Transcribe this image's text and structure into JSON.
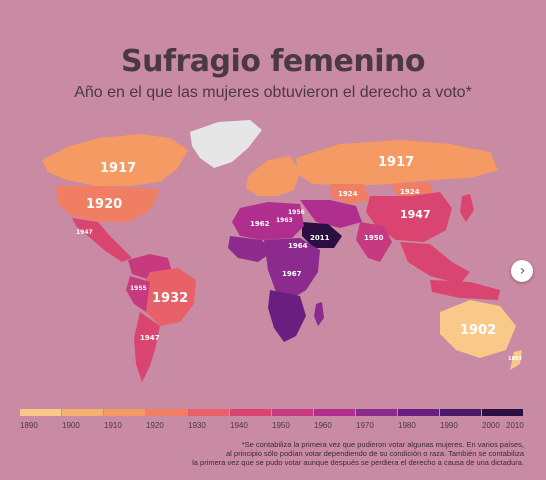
{
  "header": {
    "title": "Sufragio femenino",
    "subtitle": "Año en el que las mujeres obtuvieron el derecho a voto*"
  },
  "colors": {
    "background": "#c98aa3",
    "greenland": "#e6e6e6",
    "scale": [
      "#f9c98a",
      "#f8b070",
      "#f59a62",
      "#f07e62",
      "#e86068",
      "#d94570",
      "#c83a80",
      "#b02e8e",
      "#8c2a8e",
      "#6a1f80",
      "#4a1a68",
      "#2a0f40"
    ]
  },
  "map_labels": [
    {
      "id": "usa",
      "text": "1920",
      "color_index": 3
    },
    {
      "id": "canada",
      "text": "1917",
      "color_index": 2
    },
    {
      "id": "russia",
      "text": "1917",
      "color_index": 2
    },
    {
      "id": "brazil",
      "text": "1932",
      "color_index": 4
    },
    {
      "id": "china",
      "text": "1947",
      "color_index": 5
    },
    {
      "id": "australia",
      "text": "1902",
      "color_index": 1
    },
    {
      "id": "india",
      "text": "1950",
      "color_index": 6
    },
    {
      "id": "saudi",
      "text": "2011",
      "color_index": 11
    },
    {
      "id": "mongolia",
      "text": "1924",
      "color_index": 3
    },
    {
      "id": "kazakh",
      "text": "1924",
      "color_index": 3
    },
    {
      "id": "algeria",
      "text": "1962",
      "color_index": 7
    },
    {
      "id": "libya",
      "text": "1963",
      "color_index": 7
    },
    {
      "id": "egypt",
      "text": "1956",
      "color_index": 6
    },
    {
      "id": "sudan",
      "text": "1964",
      "color_index": 7
    },
    {
      "id": "congo",
      "text": "1967",
      "color_index": 7
    },
    {
      "id": "mexico",
      "text": "1947",
      "color_index": 5
    },
    {
      "id": "argentina",
      "text": "1947",
      "color_index": 5
    },
    {
      "id": "peru",
      "text": "1955",
      "color_index": 6
    },
    {
      "id": "nz",
      "text": "1893",
      "color_index": 0
    }
  ],
  "legend": {
    "ticks": [
      "1890",
      "1900",
      "1910",
      "1920",
      "1930",
      "1940",
      "1950",
      "1960",
      "1970",
      "1980",
      "1990",
      "2000",
      "2010"
    ]
  },
  "footnote": {
    "lines": [
      "*Se contabiliza la primera vez que pudieron votar algunas mujeres. En varios países,",
      "al principio sólo podían votar dependiendo de su condición o raza. También se contabiliza",
      "la primera vez que se pudo votar aunque después se perdiera el derecho a causa de una dictadura."
    ]
  },
  "nav": {
    "icon": "chevron-right-icon",
    "glyph": "›"
  }
}
